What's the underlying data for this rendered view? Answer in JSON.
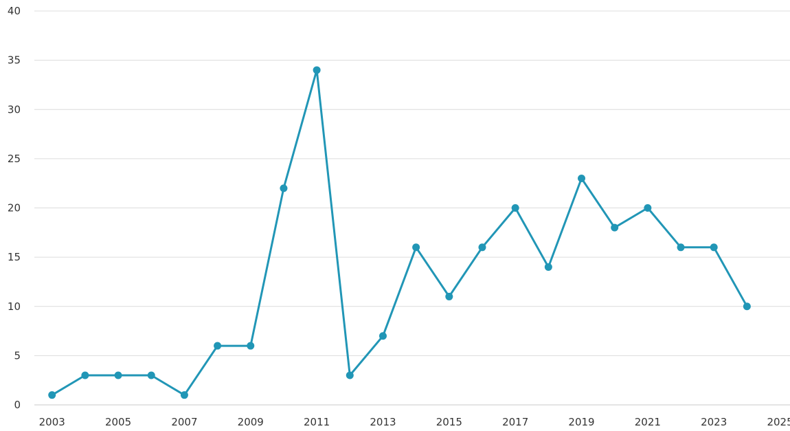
{
  "chart_data": {
    "type": "line",
    "title": "",
    "xlabel": "",
    "ylabel": "",
    "xlim": [
      2002.3,
      2025.3
    ],
    "ylim": [
      0,
      40
    ],
    "x_ticks": [
      2003,
      2005,
      2007,
      2009,
      2011,
      2013,
      2015,
      2017,
      2019,
      2021,
      2023,
      2025
    ],
    "y_ticks": [
      0,
      5,
      10,
      15,
      20,
      25,
      30,
      35,
      40
    ],
    "grid": "horizontal",
    "legend": "none",
    "series": [
      {
        "color": "#2196b6",
        "x": [
          2003,
          2004,
          2005,
          2006,
          2007,
          2008,
          2009,
          2010,
          2011,
          2012,
          2013,
          2014,
          2015,
          2016,
          2017,
          2018,
          2019,
          2020,
          2021,
          2022,
          2023,
          2024
        ],
        "y": [
          1,
          3,
          3,
          3,
          1,
          6,
          6,
          22,
          34,
          3,
          7,
          16,
          11,
          16,
          20,
          14,
          23,
          18,
          20,
          16,
          16,
          10
        ]
      }
    ]
  }
}
